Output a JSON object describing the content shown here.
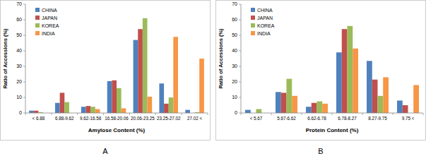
{
  "chart_data": [
    {
      "type": "bar",
      "title": "A",
      "x_label": "Amylose Content (%)",
      "y_label": "Ratio of Accessions (%)",
      "categories": [
        "< 6.88",
        "6.88-9.62",
        "9.62-16.58",
        "16.58-20.06",
        "20.06-23.25",
        "23.25-27.02",
        "27.02 <"
      ],
      "series": [
        {
          "name": "CHINA",
          "color": "#4f81bd",
          "values": [
            1.5,
            6.5,
            4,
            20.5,
            47,
            19,
            2
          ]
        },
        {
          "name": "JAPAN",
          "color": "#c0504d",
          "values": [
            1.5,
            13,
            4.5,
            21,
            54,
            6,
            0
          ]
        },
        {
          "name": "KOREA",
          "color": "#9bbb59",
          "values": [
            0.5,
            7,
            4,
            16,
            61,
            10,
            0.5
          ]
        },
        {
          "name": "INDIA",
          "color": "#f79646",
          "values": [
            0,
            0,
            2.5,
            3,
            10.5,
            49,
            35
          ]
        }
      ],
      "ylim": [
        0,
        70
      ],
      "yticks": [
        0,
        10,
        20,
        30,
        40,
        50,
        60,
        70
      ],
      "grid": false,
      "legend": "top-left"
    },
    {
      "type": "bar",
      "title": "B",
      "x_label": "Protein Content (%)",
      "y_label": "Ratio of Accessions (%)",
      "categories": [
        "< 5.67",
        "5.67-6.62",
        "6.62-6.78",
        "6.78-8.27",
        "8.27-9.75",
        "9.75 <"
      ],
      "series": [
        {
          "name": "CHINA",
          "color": "#4f81bd",
          "values": [
            2,
            13.5,
            4,
            39,
            33.5,
            8
          ]
        },
        {
          "name": "JAPAN",
          "color": "#c0504d",
          "values": [
            0,
            13,
            6.5,
            54,
            21.5,
            5
          ]
        },
        {
          "name": "KOREA",
          "color": "#9bbb59",
          "values": [
            2.5,
            22,
            7.5,
            56,
            11,
            0
          ]
        },
        {
          "name": "INDIA",
          "color": "#f79646",
          "values": [
            0,
            11,
            6,
            41.5,
            23,
            18
          ]
        }
      ],
      "ylim": [
        0,
        70
      ],
      "yticks": [
        0,
        10,
        20,
        30,
        40,
        50,
        60,
        70
      ],
      "grid": false,
      "legend": "top-left"
    }
  ]
}
